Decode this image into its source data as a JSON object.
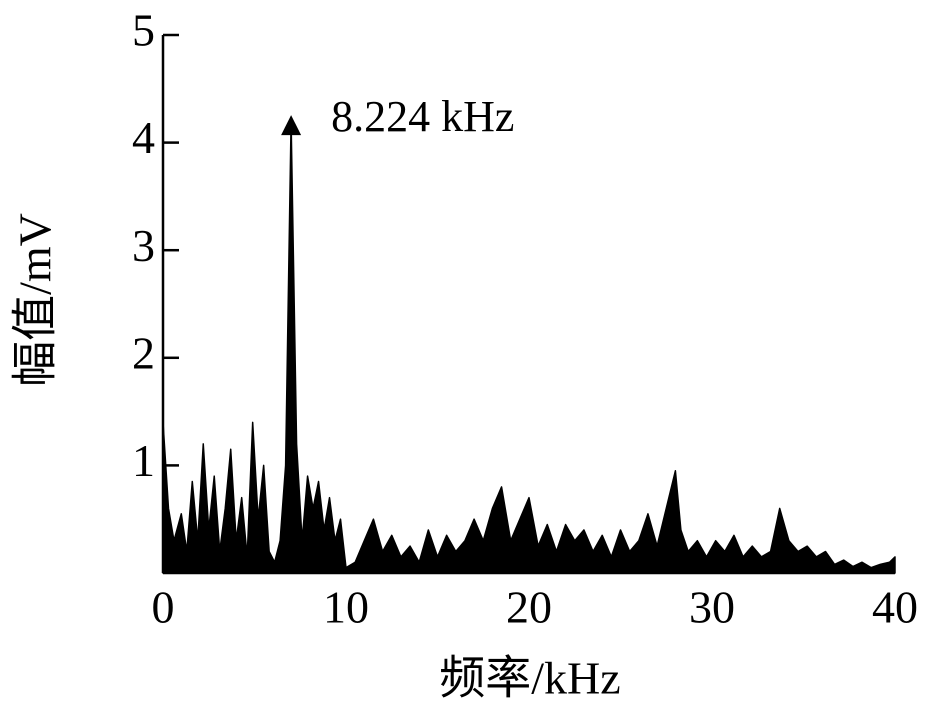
{
  "chart_data": {
    "type": "area",
    "xlabel": "频率/kHz",
    "ylabel": "幅值/mV",
    "annotation": "8.224 kHz",
    "color": "#000000",
    "xlim": [
      0,
      40
    ],
    "xticks": [
      0,
      10,
      20,
      30,
      40
    ],
    "ylim": [
      0,
      5
    ],
    "yticks": [
      1,
      2,
      3,
      4,
      5
    ],
    "x": [
      0,
      0.3,
      0.6,
      1.0,
      1.3,
      1.6,
      1.9,
      2.2,
      2.5,
      2.8,
      3.1,
      3.4,
      3.7,
      4.0,
      4.3,
      4.6,
      4.9,
      5.2,
      5.5,
      5.8,
      6.1,
      6.4,
      6.7,
      7.0,
      7.3,
      7.6,
      7.9,
      8.2,
      8.5,
      8.8,
      9.1,
      9.4,
      9.7,
      10.0,
      10.5,
      11.0,
      11.5,
      12.0,
      12.5,
      13.0,
      13.5,
      14.0,
      14.5,
      15.0,
      15.5,
      16.0,
      16.5,
      17.0,
      17.5,
      18.0,
      18.5,
      19.0,
      19.5,
      20.0,
      20.5,
      21.0,
      21.5,
      22.0,
      22.5,
      23.0,
      23.5,
      24.0,
      24.5,
      25.0,
      25.5,
      26.0,
      26.5,
      27.0,
      27.5,
      28.0,
      28.3,
      28.7,
      29.2,
      29.7,
      30.2,
      30.7,
      31.2,
      31.7,
      32.2,
      32.7,
      33.2,
      33.7,
      34.2,
      34.7,
      35.2,
      35.7,
      36.2,
      36.7,
      37.2,
      37.7,
      38.2,
      38.7,
      39.2,
      39.7,
      40
    ],
    "values": [
      1.4,
      0.6,
      0.3,
      0.55,
      0.2,
      0.85,
      0.3,
      1.2,
      0.4,
      0.9,
      0.2,
      0.6,
      1.15,
      0.3,
      0.7,
      0.15,
      1.4,
      0.5,
      1.0,
      0.2,
      0.1,
      0.3,
      1.0,
      4.2,
      1.2,
      0.3,
      0.9,
      0.6,
      0.85,
      0.4,
      0.7,
      0.3,
      0.5,
      0.05,
      0.1,
      0.3,
      0.5,
      0.2,
      0.35,
      0.15,
      0.25,
      0.1,
      0.4,
      0.15,
      0.35,
      0.2,
      0.3,
      0.5,
      0.3,
      0.6,
      0.8,
      0.3,
      0.5,
      0.7,
      0.25,
      0.45,
      0.2,
      0.45,
      0.3,
      0.4,
      0.2,
      0.35,
      0.15,
      0.4,
      0.2,
      0.3,
      0.55,
      0.25,
      0.6,
      0.95,
      0.4,
      0.2,
      0.3,
      0.15,
      0.3,
      0.2,
      0.35,
      0.15,
      0.25,
      0.15,
      0.2,
      0.6,
      0.3,
      0.2,
      0.25,
      0.15,
      0.2,
      0.08,
      0.12,
      0.06,
      0.1,
      0.05,
      0.08,
      0.1,
      0.15
    ]
  }
}
